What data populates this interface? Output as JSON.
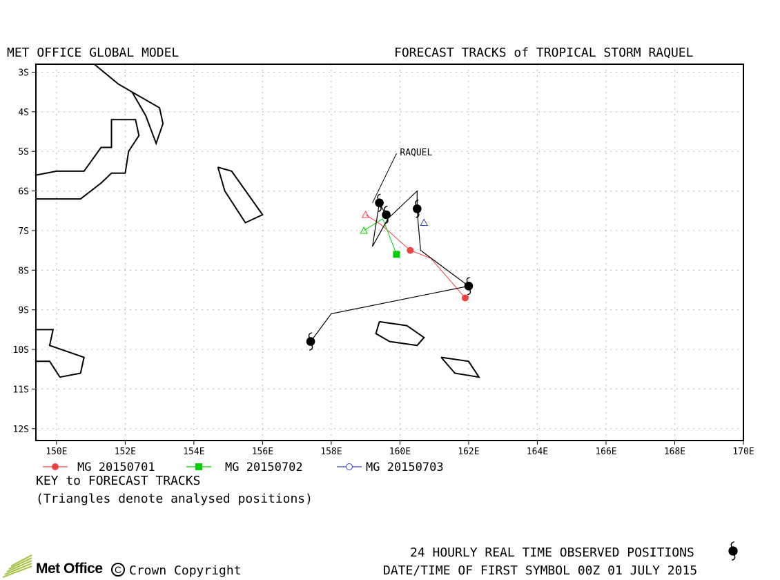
{
  "header": {
    "left_title": "MET OFFICE GLOBAL MODEL",
    "right_title": "FORECAST TRACKS of TROPICAL STORM RAQUEL"
  },
  "map": {
    "lon_range": [
      149.4,
      170.0
    ],
    "lat_range": [
      -12.3,
      -2.8
    ],
    "x_ticks": [
      {
        "value": 150,
        "label": "150E"
      },
      {
        "value": 152,
        "label": "152E"
      },
      {
        "value": 154,
        "label": "154E"
      },
      {
        "value": 156,
        "label": "156E"
      },
      {
        "value": 158,
        "label": "158E"
      },
      {
        "value": 160,
        "label": "160E"
      },
      {
        "value": 162,
        "label": "162E"
      },
      {
        "value": 164,
        "label": "164E"
      },
      {
        "value": 166,
        "label": "166E"
      },
      {
        "value": 168,
        "label": "168E"
      },
      {
        "value": 170,
        "label": "170E"
      }
    ],
    "y_ticks": [
      {
        "value": -3,
        "label": "3S"
      },
      {
        "value": -4,
        "label": "4S"
      },
      {
        "value": -5,
        "label": "5S"
      },
      {
        "value": -6,
        "label": "6S"
      },
      {
        "value": -7,
        "label": "7S"
      },
      {
        "value": -8,
        "label": "8S"
      },
      {
        "value": -9,
        "label": "9S"
      },
      {
        "value": -10,
        "label": "10S"
      },
      {
        "value": -11,
        "label": "11S"
      },
      {
        "value": -12,
        "label": "12S"
      }
    ],
    "grid": true,
    "coastlines": [
      [
        [
          151.1,
          -2.8
        ],
        [
          151.8,
          -3.3
        ],
        [
          152.2,
          -3.5
        ],
        [
          153.0,
          -3.9
        ],
        [
          153.1,
          -4.3
        ],
        [
          152.9,
          -4.8
        ],
        [
          152.6,
          -4.1
        ],
        [
          152.2,
          -3.5
        ]
      ],
      [
        [
          149.4,
          -5.6
        ],
        [
          150.0,
          -5.5
        ],
        [
          150.8,
          -5.5
        ],
        [
          151.3,
          -4.9
        ],
        [
          151.6,
          -4.9
        ],
        [
          151.6,
          -4.2
        ],
        [
          152.3,
          -4.2
        ],
        [
          152.4,
          -4.6
        ],
        [
          152.1,
          -5.0
        ],
        [
          152.0,
          -5.55
        ],
        [
          151.6,
          -5.55
        ],
        [
          151.3,
          -5.8
        ],
        [
          150.7,
          -6.2
        ],
        [
          149.4,
          -6.2
        ]
      ],
      [
        [
          154.7,
          -5.4
        ],
        [
          155.1,
          -5.5
        ],
        [
          156.0,
          -6.6
        ],
        [
          155.5,
          -6.8
        ],
        [
          154.9,
          -6.0
        ],
        [
          154.7,
          -5.4
        ]
      ],
      [
        [
          149.4,
          -9.5
        ],
        [
          149.9,
          -9.5
        ],
        [
          149.8,
          -9.9
        ],
        [
          150.8,
          -10.2
        ],
        [
          150.7,
          -10.6
        ],
        [
          150.1,
          -10.7
        ],
        [
          149.8,
          -10.3
        ],
        [
          149.4,
          -10.3
        ]
      ],
      [
        [
          159.4,
          -9.3
        ],
        [
          160.2,
          -9.4
        ],
        [
          160.7,
          -9.7
        ],
        [
          160.5,
          -9.9
        ],
        [
          159.7,
          -9.8
        ],
        [
          159.3,
          -9.6
        ],
        [
          159.4,
          -9.3
        ]
      ],
      [
        [
          161.2,
          -10.2
        ],
        [
          162.0,
          -10.3
        ],
        [
          162.3,
          -10.7
        ],
        [
          161.6,
          -10.6
        ],
        [
          161.2,
          -10.2
        ]
      ]
    ],
    "storm_label": "RAQUEL",
    "storm_label_pos": {
      "lon": 160.2,
      "lat": -5.05
    }
  },
  "tracks": {
    "observed": [
      [
        159.4,
        -6.3
      ],
      [
        159.65,
        -6.7
      ],
      [
        160.5,
        -6.0
      ],
      [
        160.5,
        -6.5
      ],
      [
        160.6,
        -7.5
      ],
      [
        162.0,
        -8.4
      ],
      [
        158.0,
        -9.1
      ],
      [
        157.4,
        -9.8
      ]
    ],
    "observed_symbols": [
      [
        159.4,
        -6.3
      ],
      [
        160.5,
        -6.45
      ],
      [
        162.0,
        -8.4
      ],
      [
        157.4,
        -9.8
      ],
      [
        159.6,
        -6.6
      ]
    ],
    "raquel_leader": [
      [
        159.2,
        -6.3
      ],
      [
        159.9,
        -5.05
      ]
    ],
    "extra_segments": [
      [
        [
          159.65,
          -6.7
        ],
        [
          159.2,
          -7.4
        ],
        [
          159.4,
          -6.3
        ]
      ]
    ],
    "series": [
      {
        "name": "MG 20150701",
        "color": "#f04040",
        "marker": "circle",
        "points": [
          [
            159.0,
            -6.6
          ],
          [
            159.45,
            -6.85
          ],
          [
            160.3,
            -7.5
          ],
          [
            160.9,
            -7.7
          ],
          [
            161.9,
            -8.7
          ]
        ],
        "analysed": [
          159.0,
          -6.6
        ],
        "filled": [
          [
            160.3,
            -7.5
          ],
          [
            161.9,
            -8.7
          ]
        ]
      },
      {
        "name": "MG 20150702",
        "color": "#00d000",
        "marker": "square",
        "points": [
          [
            158.95,
            -7.0
          ],
          [
            159.5,
            -6.7
          ],
          [
            159.9,
            -7.6
          ]
        ],
        "analysed": [
          158.95,
          -7.0
        ],
        "filled": [
          [
            159.9,
            -7.6
          ]
        ]
      },
      {
        "name": "MG 20150703",
        "color": "#3040d0",
        "marker": "open-circle",
        "points": [],
        "analysed": [
          160.7,
          -6.8
        ],
        "filled": []
      }
    ]
  },
  "legend": {
    "key_title": "KEY to FORECAST TRACKS",
    "key_note": "(Triangles denote analysed positions)"
  },
  "footer": {
    "logo_text": "Met Office",
    "copyright": "Crown Copyright",
    "copy_symbol": "C",
    "observed_label": "24 HOURLY REAL TIME OBSERVED POSITIONS",
    "first_symbol": "DATE/TIME OF FIRST SYMBOL 00Z 01 JULY 2015",
    "logo_color": "#a8c64e"
  }
}
